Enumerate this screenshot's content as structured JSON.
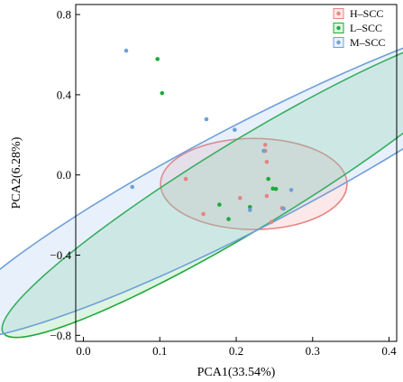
{
  "chart_data": {
    "type": "scatter",
    "xlabel": "PCA1(33.54%)",
    "ylabel": "PCA2(6.28%)",
    "xlim": [
      -0.01,
      0.41
    ],
    "ylim": [
      -0.83,
      0.85
    ],
    "xticks": [
      0.0,
      0.1,
      0.2,
      0.3,
      0.4
    ],
    "xtick_labels": [
      "0.0",
      "0.1",
      "0.2",
      "0.3",
      "0.4"
    ],
    "yticks": [
      -0.8,
      -0.4,
      0.0,
      0.4,
      0.8
    ],
    "ytick_labels": [
      "−0.8",
      "−0.4",
      "0.0",
      "0.4",
      "0.8"
    ],
    "grid": false,
    "legend_position": "top-right",
    "series": [
      {
        "name": "H–SCC",
        "color": "#e8837f",
        "fill": "rgba(240,150,150,0.22)",
        "points": [
          {
            "x": 0.134,
            "y": -0.02
          },
          {
            "x": 0.157,
            "y": -0.195
          },
          {
            "x": 0.205,
            "y": -0.115
          },
          {
            "x": 0.238,
            "y": 0.15
          },
          {
            "x": 0.238,
            "y": 0.12
          },
          {
            "x": 0.24,
            "y": 0.065
          },
          {
            "x": 0.24,
            "y": -0.105
          },
          {
            "x": 0.246,
            "y": -0.235
          },
          {
            "x": 0.26,
            "y": -0.165
          }
        ],
        "ellipse": {
          "cx": 0.223,
          "cy": -0.045,
          "rx": 0.122,
          "ry": 0.227,
          "angle_deg": 0
        }
      },
      {
        "name": "L–SCC",
        "color": "#1faa3c",
        "fill": "rgba(120,210,140,0.25)",
        "points": [
          {
            "x": 0.097,
            "y": 0.578
          },
          {
            "x": 0.103,
            "y": 0.408
          },
          {
            "x": 0.178,
            "y": -0.148
          },
          {
            "x": 0.19,
            "y": -0.22
          },
          {
            "x": 0.218,
            "y": -0.16
          },
          {
            "x": 0.242,
            "y": -0.02
          },
          {
            "x": 0.248,
            "y": -0.068
          },
          {
            "x": 0.252,
            "y": -0.07
          }
        ],
        "ellipse": {
          "cx": 0.218,
          "cy": -0.04,
          "rx": 0.1,
          "ry": 0.83,
          "angle_deg": -22
        }
      },
      {
        "name": "M–SCC",
        "color": "#6f9fd8",
        "fill": "rgba(150,190,235,0.22)",
        "points": [
          {
            "x": 0.056,
            "y": 0.62
          },
          {
            "x": 0.064,
            "y": -0.06
          },
          {
            "x": 0.161,
            "y": 0.278
          },
          {
            "x": 0.198,
            "y": 0.225
          },
          {
            "x": 0.218,
            "y": -0.175
          },
          {
            "x": 0.236,
            "y": 0.12
          },
          {
            "x": 0.262,
            "y": -0.168
          },
          {
            "x": 0.272,
            "y": -0.075
          }
        ],
        "ellipse": {
          "cx": 0.22,
          "cy": 0.0,
          "rx": 0.128,
          "ry": 0.9,
          "angle_deg": -25
        }
      }
    ]
  }
}
